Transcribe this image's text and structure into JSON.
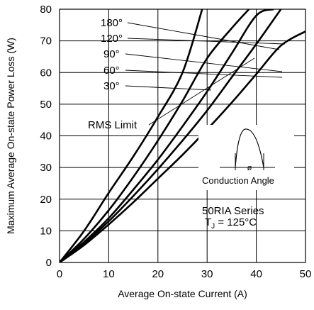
{
  "chart_data": {
    "type": "line",
    "title": "",
    "xlabel": "Average On-state Current (A)",
    "ylabel": "Maximum Average On-state Power Loss (W)",
    "xlim": [
      0,
      50
    ],
    "ylim": [
      0,
      80
    ],
    "xticks": [
      "0",
      "10",
      "20",
      "30",
      "40",
      "50"
    ],
    "yticks": [
      "0",
      "10",
      "20",
      "30",
      "40",
      "50",
      "60",
      "70",
      "80"
    ],
    "grid": true,
    "series": [
      {
        "name": "180°",
        "x": [
          0,
          5,
          10,
          15,
          20,
          25,
          30,
          35,
          40,
          45,
          50
        ],
        "y": [
          0,
          5.5,
          12,
          19,
          26.5,
          34,
          42,
          50.5,
          59.5,
          68.5,
          73
        ]
      },
      {
        "name": "120°",
        "x": [
          0,
          5,
          10,
          15,
          20,
          25,
          30,
          35,
          40,
          45
        ],
        "y": [
          0,
          6,
          13,
          21,
          29.5,
          38.5,
          48,
          58.5,
          69,
          80
        ]
      },
      {
        "name": "90°",
        "x": [
          0,
          5,
          10,
          15,
          20,
          25,
          30,
          35,
          40,
          43.5
        ],
        "y": [
          0,
          6.5,
          14,
          23,
          32.5,
          43,
          54,
          66,
          78,
          80
        ]
      },
      {
        "name": "60°",
        "x": [
          0,
          5,
          10,
          15,
          20,
          25,
          30,
          35,
          38.5
        ],
        "y": [
          0,
          7.5,
          16.5,
          27,
          38.5,
          51,
          64.5,
          74,
          80
        ]
      },
      {
        "name": "30°",
        "x": [
          0,
          5,
          10,
          15,
          20,
          25,
          29
        ],
        "y": [
          0,
          10,
          22,
          33.5,
          46,
          60,
          80
        ]
      }
    ],
    "annotations": {
      "rms_limit": "RMS Limit",
      "conduction_angle": "Conduction Angle",
      "phi": "ø",
      "series_line1": "50RIA Series",
      "tj_prefix": "T",
      "tj_sub": "J",
      "tj_suffix": " = 125°C"
    }
  }
}
